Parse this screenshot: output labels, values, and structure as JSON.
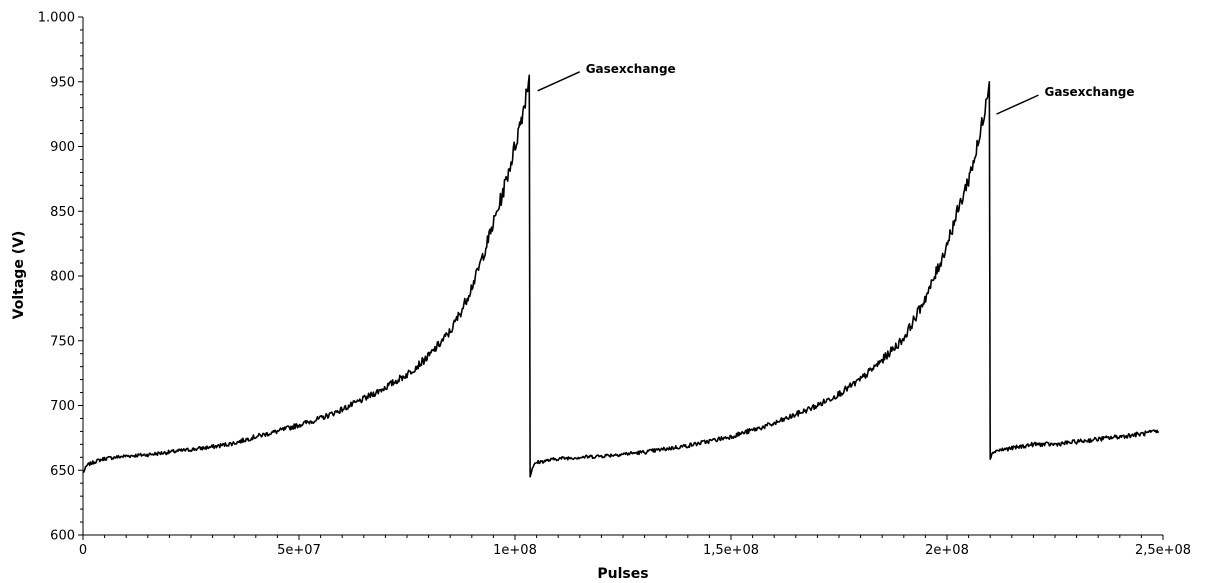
{
  "chart_data": {
    "type": "line",
    "title": "",
    "xlabel": "Pulses",
    "ylabel": "Voltage (V)",
    "xlim": [
      0,
      250000000
    ],
    "ylim": [
      600,
      1000
    ],
    "grid": false,
    "legend": "none",
    "x_ticks": [
      {
        "value": 0,
        "label": "0"
      },
      {
        "value": 50000000,
        "label": "5e+07"
      },
      {
        "value": 100000000,
        "label": "1e+08"
      },
      {
        "value": 150000000,
        "label": "1,5e+08"
      },
      {
        "value": 200000000,
        "label": "2e+08"
      },
      {
        "value": 250000000,
        "label": "2,5e+08"
      }
    ],
    "y_ticks": [
      {
        "value": 600,
        "label": "600"
      },
      {
        "value": 650,
        "label": "650"
      },
      {
        "value": 700,
        "label": "700"
      },
      {
        "value": 750,
        "label": "750"
      },
      {
        "value": 800,
        "label": "800"
      },
      {
        "value": 850,
        "label": "850"
      },
      {
        "value": 900,
        "label": "900"
      },
      {
        "value": 950,
        "label": "950"
      },
      {
        "value": 1000,
        "label": "1.000"
      }
    ],
    "series": [
      {
        "color": "#000000",
        "points": [
          [
            0,
            648
          ],
          [
            1000000,
            654
          ],
          [
            3000000,
            657
          ],
          [
            5000000,
            659
          ],
          [
            10000000,
            661
          ],
          [
            15000000,
            662
          ],
          [
            20000000,
            664
          ],
          [
            25000000,
            666
          ],
          [
            30000000,
            668
          ],
          [
            35000000,
            671
          ],
          [
            40000000,
            676
          ],
          [
            45000000,
            680
          ],
          [
            50000000,
            685
          ],
          [
            55000000,
            690
          ],
          [
            60000000,
            697
          ],
          [
            65000000,
            705
          ],
          [
            70000000,
            714
          ],
          [
            75000000,
            724
          ],
          [
            80000000,
            738
          ],
          [
            85000000,
            757
          ],
          [
            88000000,
            776
          ],
          [
            91000000,
            800
          ],
          [
            94000000,
            830
          ],
          [
            97000000,
            862
          ],
          [
            100000000,
            900
          ],
          [
            102000000,
            930
          ],
          [
            103300000,
            955
          ],
          [
            103500000,
            645
          ],
          [
            104000000,
            652
          ],
          [
            105000000,
            656
          ],
          [
            110000000,
            659
          ],
          [
            120000000,
            661
          ],
          [
            130000000,
            664
          ],
          [
            140000000,
            669
          ],
          [
            150000000,
            676
          ],
          [
            160000000,
            686
          ],
          [
            170000000,
            700
          ],
          [
            175000000,
            709
          ],
          [
            180000000,
            720
          ],
          [
            185000000,
            735
          ],
          [
            190000000,
            752
          ],
          [
            193000000,
            770
          ],
          [
            196000000,
            790
          ],
          [
            199000000,
            815
          ],
          [
            202000000,
            845
          ],
          [
            205000000,
            875
          ],
          [
            207500000,
            905
          ],
          [
            209200000,
            940
          ],
          [
            209800000,
            950
          ],
          [
            210000000,
            660
          ],
          [
            211000000,
            665
          ],
          [
            215000000,
            667
          ],
          [
            220000000,
            670
          ],
          [
            225000000,
            670
          ],
          [
            230000000,
            672
          ],
          [
            235000000,
            674
          ],
          [
            240000000,
            676
          ],
          [
            245000000,
            678
          ],
          [
            249000000,
            680
          ]
        ]
      }
    ],
    "annotations": [
      {
        "text": "Gasexchange",
        "x": 103400000,
        "y": 943
      },
      {
        "text": "Gasexchange",
        "x": 209600000,
        "y": 925
      }
    ]
  }
}
